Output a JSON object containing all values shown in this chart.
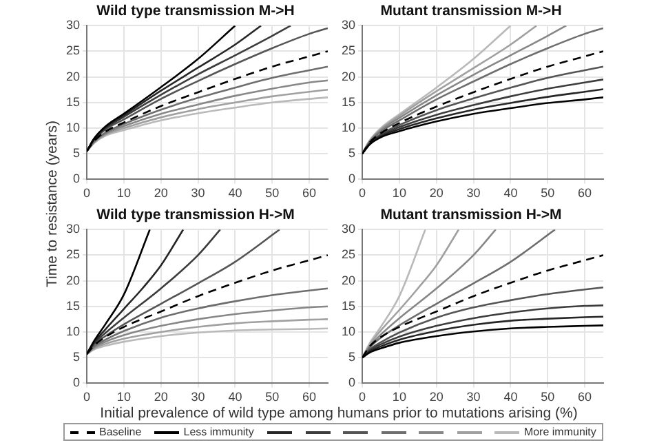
{
  "chart_data": [
    {
      "type": "line",
      "title": "Wild type transmission M->H",
      "ylabel": "Time to resistance (years)",
      "xlim": [
        0,
        65
      ],
      "xticks": [
        0,
        10,
        20,
        30,
        40,
        50,
        60
      ],
      "ylim": [
        0,
        30
      ],
      "yticks": [
        0,
        5,
        10,
        15,
        20,
        25,
        30
      ],
      "grid": true,
      "marker": "none",
      "legend": "bottom",
      "series": [
        {
          "name": "Baseline",
          "color": "#000000",
          "line_style": "dashed",
          "x": [
            0,
            2,
            5,
            10,
            20,
            30,
            40,
            50,
            60,
            65
          ],
          "values": [
            5.5,
            7.5,
            9.3,
            11.1,
            14.3,
            17,
            19.6,
            22,
            24,
            25
          ]
        },
        {
          "name": "Less immunity",
          "color": "#000000",
          "x": [
            0,
            2,
            5,
            10,
            20,
            30,
            40
          ],
          "values": [
            5.5,
            8,
            10.3,
            12.8,
            18,
            23.5,
            30
          ]
        },
        {
          "color": "#262626",
          "x": [
            0,
            2,
            5,
            10,
            20,
            30,
            40,
            47
          ],
          "values": [
            5.5,
            7.9,
            10.1,
            12.5,
            17.3,
            21.8,
            26.3,
            30
          ]
        },
        {
          "color": "#3c3c3c",
          "x": [
            0,
            2,
            5,
            10,
            20,
            30,
            40,
            50,
            55
          ],
          "values": [
            5.5,
            7.8,
            9.9,
            12.2,
            16.5,
            20.5,
            24.2,
            28,
            30
          ]
        },
        {
          "color": "#555555",
          "x": [
            0,
            2,
            5,
            10,
            20,
            30,
            40,
            50,
            60,
            65
          ],
          "values": [
            5.5,
            7.7,
            9.7,
            11.7,
            15.7,
            19.2,
            22.5,
            25.6,
            28.4,
            29.5
          ]
        },
        {
          "color": "#6e6e6e",
          "x": [
            0,
            2,
            5,
            10,
            20,
            30,
            40,
            50,
            60,
            65
          ],
          "values": [
            5.5,
            7.4,
            9.1,
            10.8,
            13.6,
            15.9,
            17.9,
            19.8,
            21.3,
            22
          ]
        },
        {
          "color": "#878787",
          "x": [
            0,
            2,
            5,
            10,
            20,
            30,
            40,
            50,
            60,
            65
          ],
          "values": [
            5.5,
            7.3,
            8.9,
            10.4,
            12.8,
            14.6,
            16.3,
            17.7,
            18.9,
            19.3
          ]
        },
        {
          "color": "#a0a0a0",
          "x": [
            0,
            2,
            5,
            10,
            20,
            30,
            40,
            50,
            60,
            65
          ],
          "values": [
            5.5,
            7.2,
            8.7,
            10,
            12.1,
            13.7,
            15,
            16.2,
            17.1,
            17.5
          ]
        },
        {
          "name": "More immunity",
          "color": "#b9b9b9",
          "x": [
            0,
            2,
            5,
            10,
            20,
            30,
            40,
            50,
            60,
            65
          ],
          "values": [
            5.5,
            7.1,
            8.5,
            9.6,
            11.5,
            12.9,
            14,
            15,
            15.7,
            16
          ]
        }
      ]
    },
    {
      "type": "line",
      "title": "Mutant transmission M->H",
      "xlim": [
        0,
        65
      ],
      "xticks": [
        0,
        10,
        20,
        30,
        40,
        50,
        60
      ],
      "ylim": [
        0,
        30
      ],
      "yticks": [
        0,
        5,
        10,
        15,
        20,
        25,
        30
      ],
      "grid": true,
      "marker": "none",
      "series": [
        {
          "color": "#000000",
          "line_style": "dashed",
          "x": [
            0,
            2,
            5,
            10,
            20,
            30,
            40,
            50,
            60,
            65
          ],
          "values": [
            5,
            7.2,
            9,
            11,
            14.2,
            17,
            19.6,
            22,
            24,
            25
          ]
        },
        {
          "color": "#000000",
          "x": [
            0,
            2,
            5,
            10,
            20,
            30,
            40,
            50,
            60,
            65
          ],
          "values": [
            5,
            6.8,
            8.2,
            9.4,
            11.3,
            12.8,
            13.9,
            14.9,
            15.6,
            16
          ]
        },
        {
          "color": "#262626",
          "x": [
            0,
            2,
            5,
            10,
            20,
            30,
            40,
            50,
            60,
            65
          ],
          "values": [
            5,
            6.9,
            8.4,
            9.8,
            11.9,
            13.6,
            14.9,
            16.1,
            17.1,
            17.6
          ]
        },
        {
          "color": "#3c3c3c",
          "x": [
            0,
            2,
            5,
            10,
            20,
            30,
            40,
            50,
            60,
            65
          ],
          "values": [
            5,
            7,
            8.6,
            10.2,
            12.6,
            14.5,
            16.2,
            17.7,
            18.9,
            19.5
          ]
        },
        {
          "color": "#555555",
          "x": [
            0,
            2,
            5,
            10,
            20,
            30,
            40,
            50,
            60,
            65
          ],
          "values": [
            5,
            7.1,
            8.8,
            10.6,
            13.5,
            15.8,
            17.9,
            19.8,
            21.3,
            22
          ]
        },
        {
          "color": "#6e6e6e",
          "x": [
            0,
            2,
            5,
            10,
            20,
            30,
            40,
            50,
            60,
            65
          ],
          "values": [
            5,
            7.3,
            9.3,
            11.5,
            15.6,
            19.1,
            22.5,
            25.6,
            28.4,
            29.5
          ]
        },
        {
          "color": "#878787",
          "x": [
            0,
            2,
            5,
            10,
            20,
            30,
            40,
            50,
            55
          ],
          "values": [
            5,
            7.4,
            9.6,
            12,
            16.4,
            20.4,
            24.2,
            28,
            30
          ]
        },
        {
          "color": "#a0a0a0",
          "x": [
            0,
            2,
            5,
            10,
            20,
            30,
            40,
            47
          ],
          "values": [
            5,
            7.5,
            9.8,
            12.4,
            17.2,
            21.7,
            26.3,
            30
          ]
        },
        {
          "color": "#b9b9b9",
          "x": [
            0,
            2,
            5,
            10,
            20,
            30,
            40
          ],
          "values": [
            5,
            7.6,
            10,
            12.7,
            17.9,
            23.5,
            30
          ]
        }
      ]
    },
    {
      "type": "line",
      "title": "Wild type transmission H->M",
      "xlabel": "Initial prevalence of wild type among humans prior to mutations arising (%)",
      "xlim": [
        0,
        65
      ],
      "xticks": [
        0,
        10,
        20,
        30,
        40,
        50,
        60
      ],
      "ylim": [
        0,
        30
      ],
      "yticks": [
        0,
        5,
        10,
        15,
        20,
        25,
        30
      ],
      "grid": true,
      "marker": "none",
      "series": [
        {
          "color": "#000000",
          "line_style": "dashed",
          "x": [
            0,
            2,
            5,
            10,
            20,
            30,
            40,
            50,
            60,
            65
          ],
          "values": [
            5.7,
            7.4,
            9,
            11,
            14,
            17,
            19.6,
            22,
            24,
            25
          ]
        },
        {
          "color": "#000000",
          "x": [
            0,
            2,
            5,
            10,
            17
          ],
          "values": [
            5.7,
            8.3,
            11.5,
            17.3,
            30
          ]
        },
        {
          "color": "#262626",
          "x": [
            0,
            2,
            5,
            10,
            15,
            20,
            26
          ],
          "values": [
            5.7,
            8,
            10.5,
            14.5,
            18.5,
            23,
            30
          ]
        },
        {
          "color": "#3c3c3c",
          "x": [
            0,
            2,
            5,
            10,
            20,
            30,
            36
          ],
          "values": [
            5.7,
            7.8,
            9.8,
            12.8,
            18.5,
            25,
            30
          ]
        },
        {
          "color": "#555555",
          "x": [
            0,
            2,
            5,
            10,
            20,
            30,
            40,
            52
          ],
          "values": [
            5.7,
            7.6,
            9.2,
            11.5,
            15.5,
            19.5,
            23.7,
            30
          ]
        },
        {
          "color": "#6e6e6e",
          "x": [
            0,
            2,
            5,
            10,
            20,
            30,
            40,
            50,
            60,
            65
          ],
          "values": [
            5.7,
            7.2,
            8.5,
            10.2,
            12.8,
            14.6,
            16,
            17.2,
            18.1,
            18.5
          ]
        },
        {
          "color": "#878787",
          "x": [
            0,
            2,
            5,
            10,
            20,
            30,
            40,
            50,
            60,
            65
          ],
          "values": [
            5.7,
            7,
            8.1,
            9.4,
            11.2,
            12.5,
            13.5,
            14.2,
            14.8,
            15
          ]
        },
        {
          "color": "#a0a0a0",
          "x": [
            0,
            2,
            5,
            10,
            20,
            30,
            40,
            50,
            60,
            65
          ],
          "values": [
            5.7,
            6.8,
            7.7,
            8.7,
            10,
            11,
            11.7,
            12.1,
            12.4,
            12.5
          ]
        },
        {
          "color": "#b9b9b9",
          "x": [
            0,
            2,
            5,
            10,
            20,
            30,
            40,
            50,
            60,
            65
          ],
          "values": [
            5.7,
            6.6,
            7.3,
            8.1,
            9.2,
            9.9,
            10.3,
            10.5,
            10.6,
            10.7
          ]
        }
      ]
    },
    {
      "type": "line",
      "title": "Mutant transmission H->M",
      "xlim": [
        0,
        65
      ],
      "xticks": [
        0,
        10,
        20,
        30,
        40,
        50,
        60
      ],
      "ylim": [
        0,
        30
      ],
      "yticks": [
        0,
        5,
        10,
        15,
        20,
        25,
        30
      ],
      "grid": true,
      "marker": "none",
      "series": [
        {
          "color": "#000000",
          "line_style": "dashed",
          "x": [
            0,
            2,
            5,
            10,
            20,
            30,
            40,
            50,
            60,
            65
          ],
          "values": [
            5,
            7.2,
            9,
            11,
            14,
            17,
            19.6,
            22,
            24,
            25
          ]
        },
        {
          "color": "#000000",
          "x": [
            0,
            2,
            5,
            10,
            20,
            30,
            40,
            50,
            60,
            65
          ],
          "values": [
            5,
            6,
            6.8,
            7.9,
            9.2,
            10.1,
            10.7,
            11,
            11.2,
            11.3
          ]
        },
        {
          "color": "#262626",
          "x": [
            0,
            2,
            5,
            10,
            20,
            30,
            40,
            50,
            60,
            65
          ],
          "values": [
            5,
            6.2,
            7.2,
            8.5,
            10.2,
            11.4,
            12.2,
            12.6,
            12.9,
            13
          ]
        },
        {
          "color": "#3c3c3c",
          "x": [
            0,
            2,
            5,
            10,
            20,
            30,
            40,
            50,
            60,
            65
          ],
          "values": [
            5,
            6.4,
            7.6,
            9.1,
            11.2,
            12.7,
            13.8,
            14.6,
            15.1,
            15.2
          ]
        },
        {
          "color": "#555555",
          "x": [
            0,
            2,
            5,
            10,
            20,
            30,
            40,
            50,
            60,
            65
          ],
          "values": [
            5,
            6.6,
            8,
            9.9,
            12.8,
            14.8,
            16.2,
            17.4,
            18.3,
            18.7
          ]
        },
        {
          "color": "#6e6e6e",
          "x": [
            0,
            2,
            5,
            10,
            20,
            30,
            40,
            52
          ],
          "values": [
            5,
            7,
            8.9,
            11.3,
            15.5,
            19.5,
            23.7,
            30
          ]
        },
        {
          "color": "#878787",
          "x": [
            0,
            2,
            5,
            10,
            20,
            30,
            36
          ],
          "values": [
            5,
            7.2,
            9.5,
            12.7,
            18.5,
            25,
            30
          ]
        },
        {
          "color": "#a0a0a0",
          "x": [
            0,
            2,
            5,
            10,
            15,
            20,
            26
          ],
          "values": [
            5,
            7.5,
            10.3,
            14.3,
            18.5,
            23,
            30
          ]
        },
        {
          "color": "#b9b9b9",
          "x": [
            0,
            2,
            5,
            10,
            17
          ],
          "values": [
            5,
            7.8,
            11,
            17,
            30
          ]
        }
      ]
    }
  ]
}
